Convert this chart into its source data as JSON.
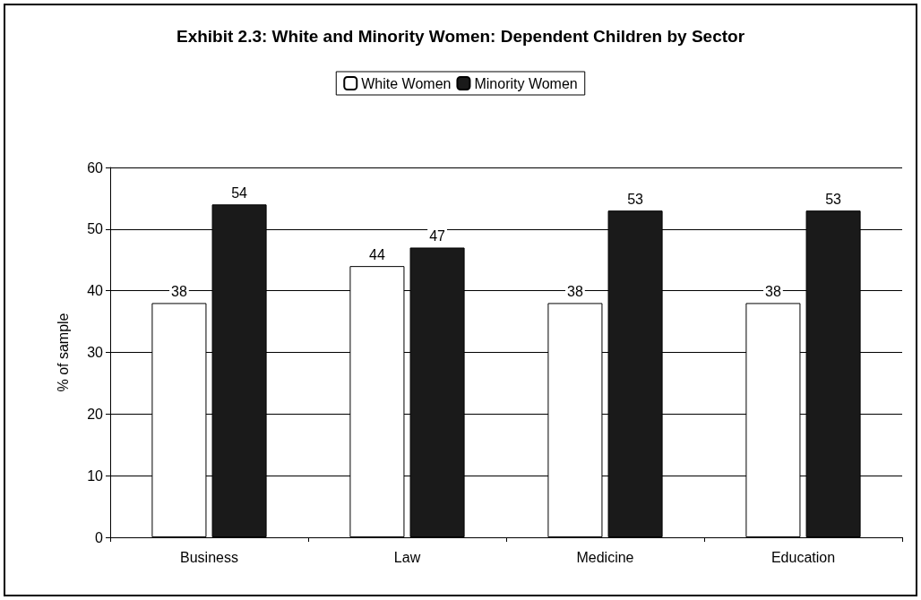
{
  "chart_data": {
    "type": "bar",
    "title": "Exhibit 2.3: White and Minority Women: Dependent Children by Sector",
    "ylabel": "% of sample",
    "categories": [
      "Business",
      "Law",
      "Medicine",
      "Education"
    ],
    "series": [
      {
        "name": "White Women",
        "color": "#ffffff",
        "values": [
          38,
          44,
          38,
          38
        ]
      },
      {
        "name": "Minority Women",
        "color": "#1a1a1a",
        "values": [
          54,
          47,
          53,
          53
        ]
      }
    ],
    "ylim": [
      0,
      60
    ],
    "yticks": [
      0,
      10,
      20,
      30,
      40,
      50,
      60
    ],
    "grid": "y",
    "legend": "top",
    "data_labels": true
  }
}
